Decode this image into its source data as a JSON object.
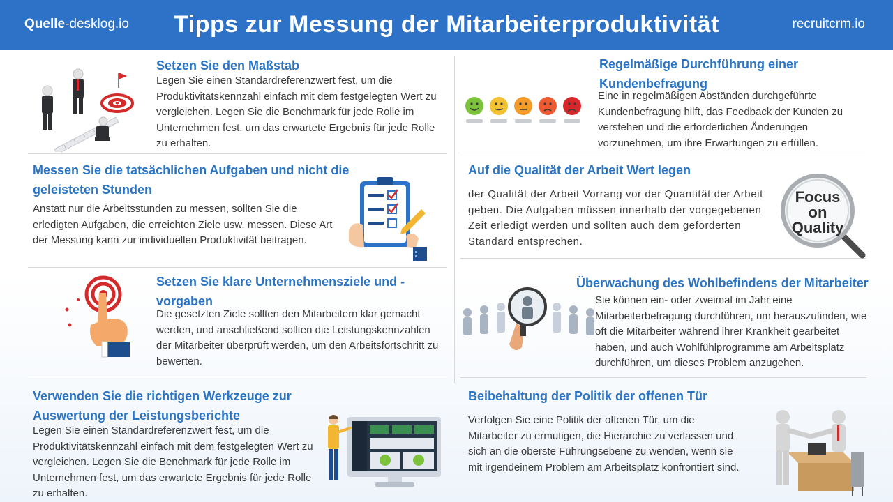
{
  "header": {
    "source_bold": "Quelle",
    "source_rest": "-desklog.io",
    "title": "Tipps zur Messung der Mitarbeiterproduktivität",
    "brand": "recruitcrm.io",
    "bg_color": "#2d72c6"
  },
  "accent_color": "#2b74c4",
  "sections": {
    "benchmark": {
      "title": "Setzen Sie den Maßstab",
      "body": "Legen Sie einen Standardreferenzwert fest, um die Produktivitätskennzahl einfach mit dem festgelegten Wert zu vergleichen. Legen Sie die Benchmark für jede Rolle im Unternehmen fest, um das erwartete Ergebnis für jede Rolle zu erhalten.",
      "icon": "target-businessmen-illustration"
    },
    "survey": {
      "title": "Regelmäßige Durchführung einer Kundenbefragung",
      "body": "Eine in regelmäßigen Abständen durchgeführte Kundenbefragung hilft, das Feedback der Kunden zu verstehen und die erforderlichen Änderungen vorzunehmen, um ihre Erwartungen zu erfüllen.",
      "icon": "rating-faces-illustration"
    },
    "tasks": {
      "title": "Messen Sie die tatsächlichen Aufgaben und nicht die geleisteten Stunden",
      "body": "Anstatt nur die Arbeitsstunden zu messen, sollten Sie die erledigten Aufgaben, die erreichten Ziele usw. messen. Diese Art der Messung kann zur individuellen Produktivität beitragen.",
      "icon": "checklist-clipboard-illustration"
    },
    "quality": {
      "title": "Auf die Qualität der Arbeit Wert legen",
      "body": "der Qualität der Arbeit Vorrang vor der Quantität der Arbeit geben. Die Aufgaben müssen innerhalb der vorgegebenen Zeit erledigt werden und sollten auch dem geforderten Standard entsprechen.",
      "icon": "magnifier-quality-illustration",
      "lens_line1": "Focus",
      "lens_line2": "on",
      "lens_line3": "Quality"
    },
    "goals": {
      "title": "Setzen Sie klare Unternehmensziele und -vorgaben",
      "body": "Die gesetzten Ziele sollten den Mitarbeitern klar gemacht werden, und anschließend sollten die Leistungskennzahlen der Mitarbeiter überprüft werden, um den Arbeitsfortschritt zu bewerten.",
      "icon": "target-hand-illustration"
    },
    "wellbeing": {
      "title": "Überwachung des Wohlbefindens der Mitarbeiter",
      "body": "Sie können ein- oder zweimal im Jahr eine Mitarbeiterbefragung durchführen, um herauszufinden, wie oft die Mitarbeiter während ihrer Krankheit gearbeitet haben, und auch Wohlfühlprogramme am Arbeitsplatz durchführen, um dieses Problem anzugehen.",
      "icon": "people-magnifier-illustration"
    },
    "tools": {
      "title": "Verwenden Sie die richtigen Werkzeuge zur Auswertung der Leistungsberichte",
      "body": "Legen Sie einen Standardreferenzwert fest, um die Produktivitätskennzahl einfach mit dem festgelegten Wert zu vergleichen. Legen Sie die Benchmark für jede Rolle im Unternehmen fest, um das erwartete Ergebnis für jede Rolle zu erhalten.",
      "icon": "dashboard-monitor-illustration"
    },
    "opendoor": {
      "title": "Beibehaltung der Politik der offenen Tür",
      "body": "Verfolgen Sie eine Politik der offenen Tür, um die Mitarbeiter zu ermutigen, die Hierarchie zu verlassen und sich an die oberste Führungsebene zu wenden, wenn sie mit irgendeinem Problem am Arbeitsplatz konfrontiert sind.",
      "icon": "handshake-desk-illustration"
    }
  }
}
